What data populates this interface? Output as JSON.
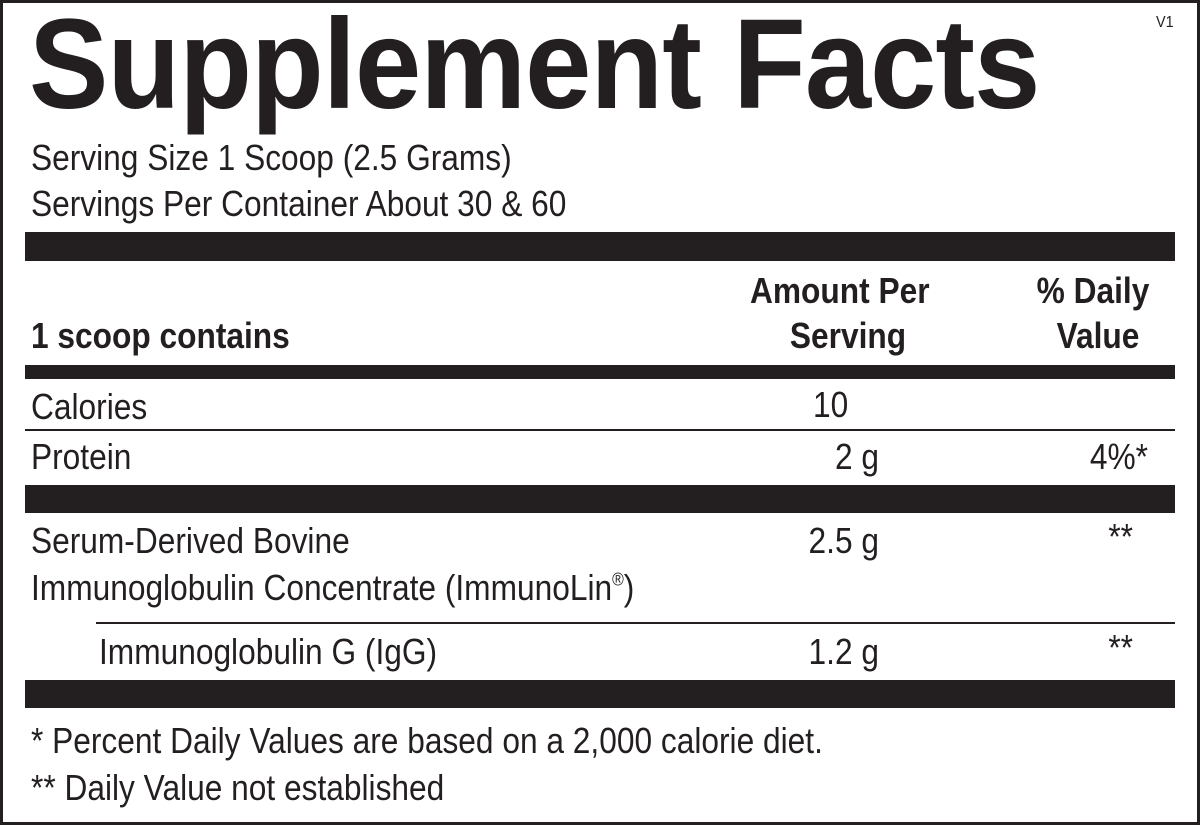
{
  "title": "Supplement Facts",
  "version": "V1",
  "serving_size": "Serving Size 1 Scoop (2.5 Grams)",
  "servings_per_container": "Servings Per Container About 30 & 60",
  "header": {
    "col1": "1 scoop contains",
    "col2_line1": "Amount Per",
    "col2_line2": "Serving",
    "col3_line1": "% Daily",
    "col3_line2": "Value"
  },
  "rows": [
    {
      "name": "Calories",
      "amount": "10",
      "dv": ""
    },
    {
      "name": "Protein",
      "amount": "2 g",
      "dv": "4%*"
    },
    {
      "name_line1": "Serum-Derived Bovine",
      "name_line2": "Immunoglobulin Concentrate (ImmunoLin",
      "registered": "®",
      "name_line2_end": ")",
      "amount": "2.5 g",
      "dv": "**"
    },
    {
      "name": "Immunoglobulin G (IgG)",
      "amount": "1.2 g",
      "dv": "**"
    }
  ],
  "footnotes": [
    "* Percent Daily Values are based on a 2,000 calorie diet.",
    "** Daily Value not established"
  ],
  "colors": {
    "ink": "#231f20",
    "background": "#ffffff"
  }
}
